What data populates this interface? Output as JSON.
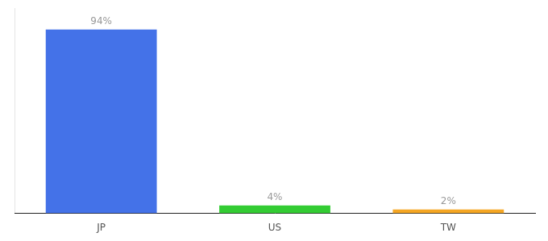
{
  "chart_data": {
    "type": "bar",
    "categories": [
      "JP",
      "US",
      "TW"
    ],
    "values": [
      94,
      4,
      2
    ],
    "colors": [
      "#4472e8",
      "#33cc33",
      "#f5a623"
    ],
    "value_labels": [
      "94%",
      "4%",
      "2%"
    ],
    "data_labels": true,
    "ylim": [
      0,
      105
    ],
    "tick_labels": "x",
    "grid": false
  }
}
